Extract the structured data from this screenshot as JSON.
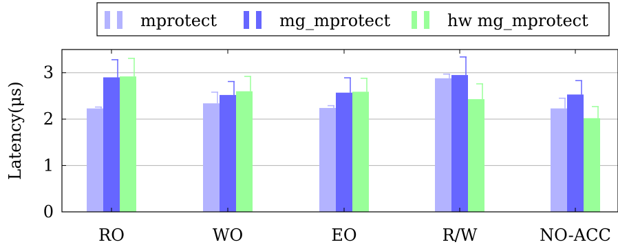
{
  "chart_data": {
    "type": "bar",
    "title": "",
    "xlabel": "",
    "ylabel": "Latency(μs)",
    "ylim": [
      0,
      3.5
    ],
    "yticks": [
      0,
      1,
      2,
      3
    ],
    "grid": "horizontal",
    "legend_position": "top",
    "categories": [
      "RO",
      "WO",
      "EO",
      "R/W",
      "NO-ACC"
    ],
    "series": [
      {
        "name": "mprotect",
        "color": "#b3b3ff",
        "values": [
          2.23,
          2.34,
          2.24,
          2.88,
          2.23
        ],
        "error": [
          0.03,
          0.24,
          0.05,
          0.09,
          0.22
        ]
      },
      {
        "name": "mg_mprotect",
        "color": "#6666ff",
        "values": [
          2.9,
          2.52,
          2.57,
          2.95,
          2.53
        ],
        "error": [
          0.38,
          0.29,
          0.32,
          0.39,
          0.3
        ]
      },
      {
        "name": "hw mg_mprotect",
        "color": "#99ff99",
        "values": [
          2.92,
          2.6,
          2.59,
          2.43,
          2.02
        ],
        "error": [
          0.39,
          0.32,
          0.29,
          0.33,
          0.25
        ]
      }
    ]
  }
}
